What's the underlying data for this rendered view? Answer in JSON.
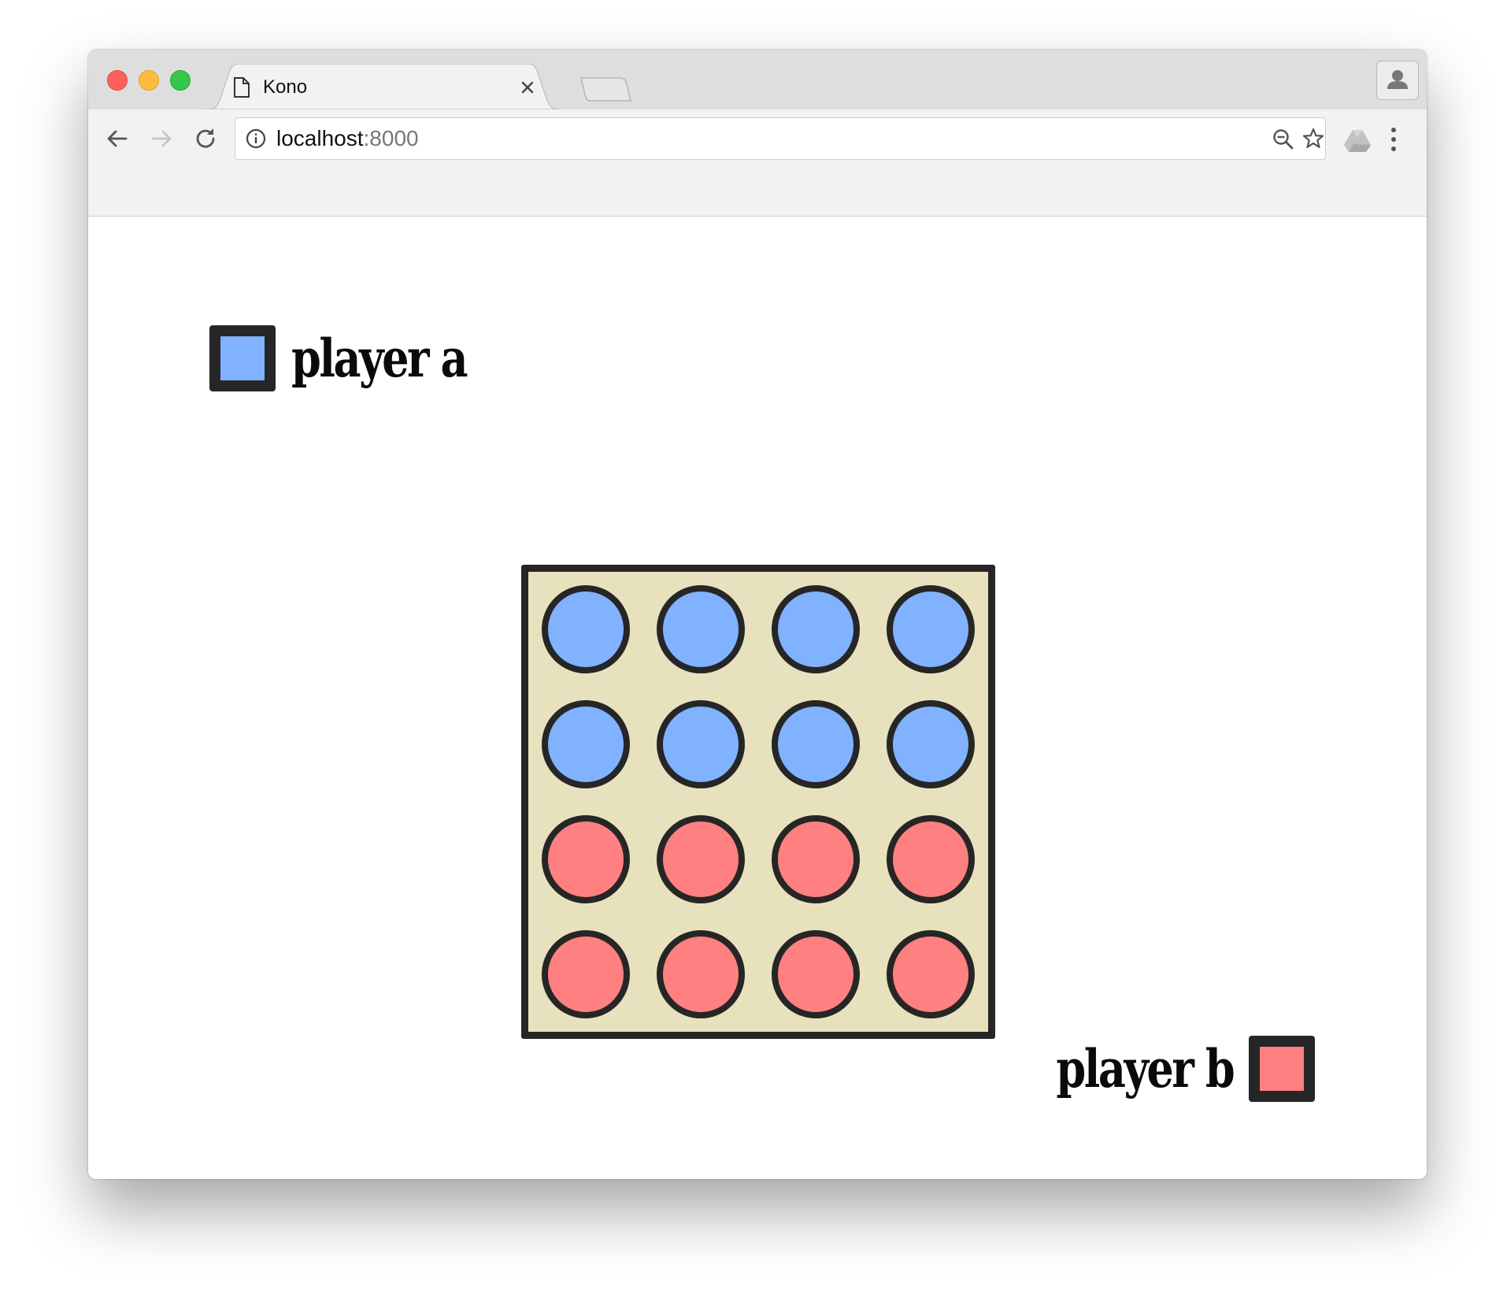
{
  "browser": {
    "tab": {
      "title": "Kono",
      "icon": "document-icon",
      "close_icon": "close-icon"
    },
    "address": {
      "host": "localhost",
      "port": ":8000",
      "info_icon": "info-icon"
    },
    "toolbar_icons": [
      "back-arrow-icon",
      "forward-arrow-icon",
      "reload-icon",
      "zoom-out-icon",
      "star-icon",
      "drive-icon",
      "menu-icon",
      "profile-icon"
    ]
  },
  "game": {
    "player_a": {
      "name": "player a",
      "color": "#80b2ff"
    },
    "player_b": {
      "name": "player b",
      "color": "#ff8080"
    },
    "board": {
      "rows": 4,
      "cols": 4,
      "background": "#e8e1bd",
      "cells": [
        [
          "a",
          "a",
          "a",
          "a"
        ],
        [
          "a",
          "a",
          "a",
          "a"
        ],
        [
          "b",
          "b",
          "b",
          "b"
        ],
        [
          "b",
          "b",
          "b",
          "b"
        ]
      ]
    }
  }
}
